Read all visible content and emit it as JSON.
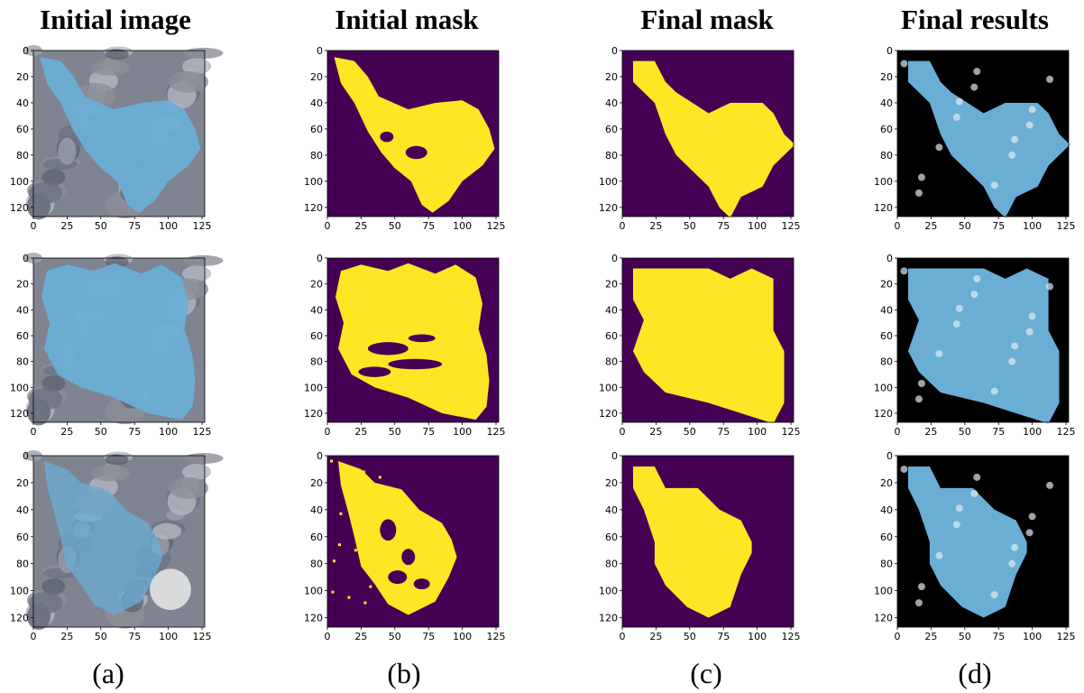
{
  "titles": [
    "Initial image",
    "Initial mask",
    "Final mask",
    "Final results"
  ],
  "sublabels": [
    "(a)",
    "(b)",
    "(c)",
    "(d)"
  ],
  "colors": {
    "mask_bg": "#440154",
    "mask_fg": "#fde725",
    "result_bg": "#000000",
    "wound_blue": "#6aaed6",
    "rock_gray": "#7f8490"
  },
  "axis": {
    "x_ticks": [
      "0",
      "25",
      "50",
      "75",
      "100",
      "125"
    ],
    "y_ticks": [
      "0",
      "20",
      "40",
      "60",
      "80",
      "100",
      "120"
    ]
  }
}
